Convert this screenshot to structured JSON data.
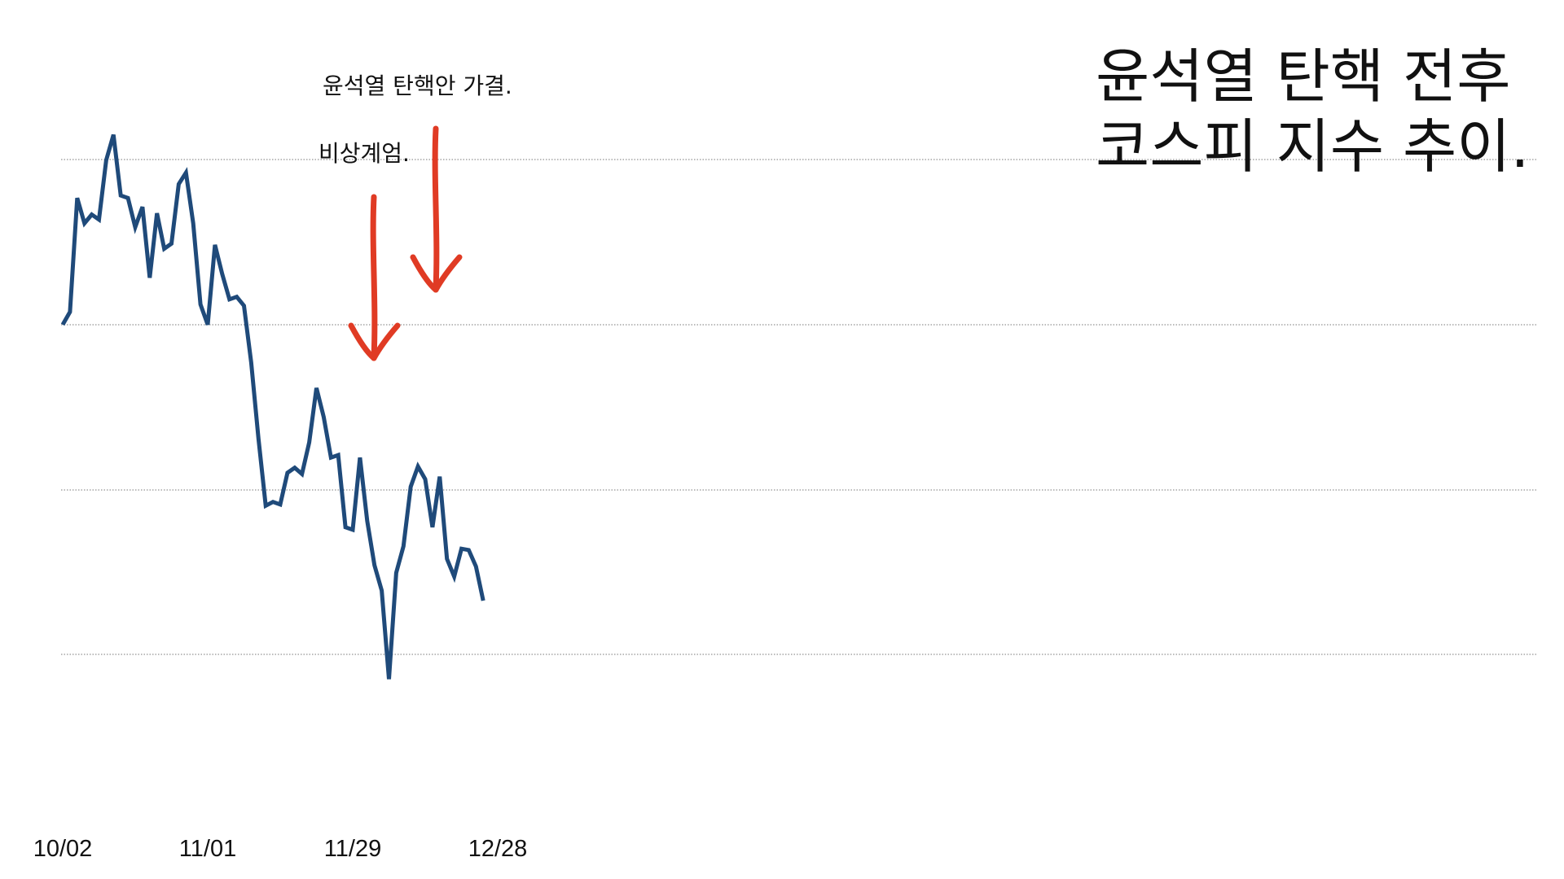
{
  "title_lines": [
    "윤석열 탄핵 전후",
    "코스피 지수 추이."
  ],
  "annotations": {
    "impeachment": "윤석열 탄핵안 가결.",
    "martial_law": "비상계엄."
  },
  "colors": {
    "line": "#1f4a7a",
    "arrow": "#e03b24",
    "grid": "#777777",
    "text": "#111111"
  },
  "chart_data": {
    "type": "line",
    "title": "윤석열 탄핵 전후 코스피 지수 추이.",
    "x_tick_labels": [
      "10/02",
      "11/01",
      "11/29",
      "12/28"
    ],
    "x_tick_index": [
      0,
      20,
      40,
      60
    ],
    "y_labels_shown": false,
    "gridlines": 4,
    "grid": true,
    "legend": "none",
    "series": [
      {
        "values": [
          2560,
          2570,
          2660,
          2640,
          2647,
          2643,
          2690,
          2710,
          2662,
          2660,
          2637,
          2653,
          2597,
          2648,
          2620,
          2624,
          2671,
          2680,
          2640,
          2576,
          2560,
          2623,
          2600,
          2580,
          2582,
          2575,
          2530,
          2470,
          2417,
          2420,
          2418,
          2443,
          2447,
          2442,
          2467,
          2510,
          2487,
          2455,
          2457,
          2400,
          2398,
          2455,
          2405,
          2370,
          2350,
          2280,
          2364,
          2385,
          2432,
          2448,
          2438,
          2400,
          2440,
          2375,
          2361,
          2383,
          2382,
          2369,
          2342
        ]
      }
    ],
    "event_markers": [
      {
        "label": "비상계엄.",
        "index": 43
      },
      {
        "label": "윤석열 탄핵안 가결.",
        "index": 52
      }
    ]
  }
}
